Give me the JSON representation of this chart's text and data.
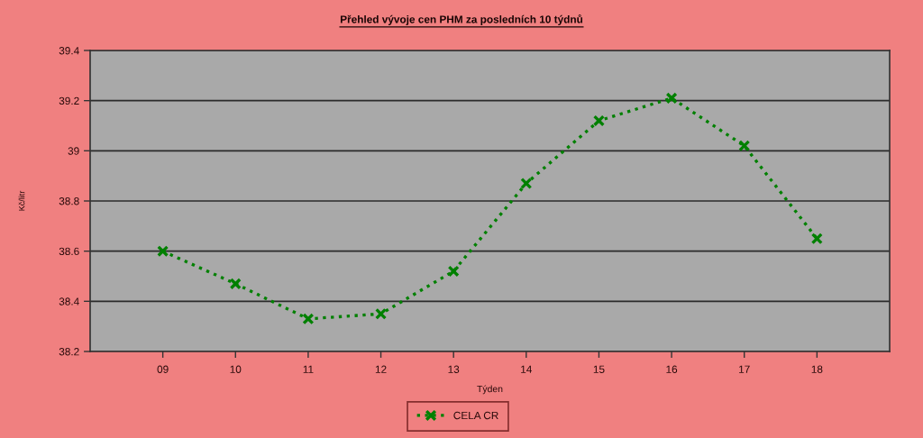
{
  "chart_data": {
    "type": "line",
    "title": "Přehled vývoje cen PHM za posledních 10 týdnů",
    "xlabel": "Týden",
    "ylabel": "Kč/litr",
    "categories": [
      "09",
      "10",
      "11",
      "12",
      "13",
      "14",
      "15",
      "16",
      "17",
      "18"
    ],
    "series": [
      {
        "name": "CELA CR",
        "color": "#008000",
        "values": [
          38.6,
          38.47,
          38.33,
          38.35,
          38.52,
          38.87,
          39.12,
          39.21,
          39.02,
          38.65
        ]
      }
    ],
    "ylim": [
      38.2,
      39.4
    ],
    "yticks": [
      38.2,
      38.4,
      38.6,
      38.8,
      39,
      39.2,
      39.4
    ],
    "grid": "y",
    "legend": "bottom",
    "marker": "cross",
    "line_style": "dotted"
  }
}
